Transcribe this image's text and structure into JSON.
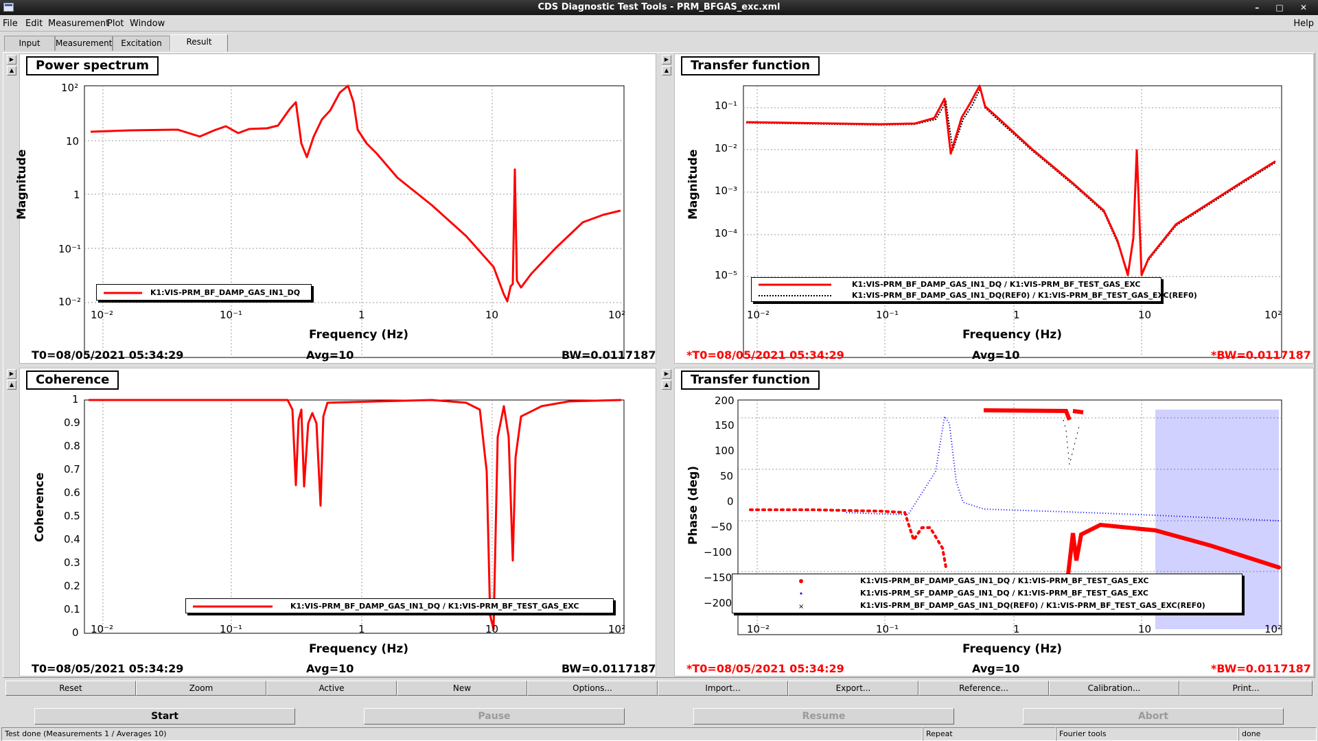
{
  "window": {
    "title": "CDS Diagnostic Test Tools - PRM_BFGAS_exc.xml",
    "controls": "– □ ✕"
  },
  "menu": {
    "items": [
      "File",
      "Edit",
      "Measurement",
      "Plot",
      "Window"
    ],
    "help": "Help"
  },
  "tabs": [
    "Input",
    "Measurement",
    "Excitation",
    "Result"
  ],
  "active_tab": "Result",
  "plots": {
    "tl": {
      "title": "Power spectrum",
      "ylabel": "Magnitude",
      "xlabel": "Frequency (Hz)",
      "t0": "T0=08/05/2021 05:34:29",
      "avg": "Avg=10",
      "bw": "BW=0.0117187",
      "legend": [
        "K1:VIS-PRM_BF_DAMP_GAS_IN1_DQ"
      ],
      "yticks": [
        "10²",
        "10",
        "1",
        "10⁻¹",
        "10⁻²"
      ]
    },
    "tr": {
      "title": "Transfer function",
      "ylabel": "Magnitude",
      "xlabel": "Frequency (Hz)",
      "t0": "*T0=08/05/2021 05:34:29",
      "avg": "Avg=10",
      "bw": "*BW=0.0117187",
      "legend": [
        "K1:VIS-PRM_BF_DAMP_GAS_IN1_DQ / K1:VIS-PRM_BF_TEST_GAS_EXC",
        "K1:VIS-PRM_BF_DAMP_GAS_IN1_DQ(REF0) / K1:VIS-PRM_BF_TEST_GAS_EXC(REF0)"
      ],
      "yticks": [
        "10⁻¹",
        "10⁻²",
        "10⁻³",
        "10⁻⁴",
        "10⁻⁵"
      ]
    },
    "bl": {
      "title": "Coherence",
      "ylabel": "Coherence",
      "xlabel": "Frequency (Hz)",
      "t0": "T0=08/05/2021 05:34:29",
      "avg": "Avg=10",
      "bw": "BW=0.0117187",
      "legend": [
        "K1:VIS-PRM_BF_DAMP_GAS_IN1_DQ / K1:VIS-PRM_BF_TEST_GAS_EXC"
      ],
      "yticks": [
        "1",
        "0.9",
        "0.8",
        "0.7",
        "0.6",
        "0.5",
        "0.4",
        "0.3",
        "0.2",
        "0.1",
        "0"
      ]
    },
    "br": {
      "title": "Transfer function",
      "ylabel": "Phase (deg)",
      "xlabel": "Frequency (Hz)",
      "t0": "*T0=08/05/2021 05:34:29",
      "avg": "Avg=10",
      "bw": "*BW=0.0117187",
      "legend": [
        "K1:VIS-PRM_BF_DAMP_GAS_IN1_DQ / K1:VIS-PRM_BF_TEST_GAS_EXC",
        "K1:VIS-PRM_SF_DAMP_GAS_IN1_DQ / K1:VIS-PRM_BF_TEST_GAS_EXC",
        "K1:VIS-PRM_BF_DAMP_GAS_IN1_DQ(REF0) / K1:VIS-PRM_BF_TEST_GAS_EXC(REF0)"
      ],
      "yticks": [
        "200",
        "150",
        "100",
        "50",
        "0",
        "−50",
        "−100",
        "−150",
        "−200"
      ]
    }
  },
  "xticks": [
    "10⁻²",
    "10⁻¹",
    "1",
    "10",
    "10²"
  ],
  "toolbar": [
    "Reset",
    "Zoom",
    "Active",
    "New",
    "Options...",
    "Import...",
    "Export...",
    "Reference...",
    "Calibration...",
    "Print..."
  ],
  "actions": {
    "start": "Start",
    "pause": "Pause",
    "resume": "Resume",
    "abort": "Abort"
  },
  "status": {
    "message": "Test done (Measurements 1 / Averages 10)",
    "repeat": "Repeat",
    "tools": "Fourier tools",
    "state": "done"
  },
  "colors": {
    "trace": "#ff0000",
    "trace2": "#0000ff",
    "ref": "#000000"
  }
}
